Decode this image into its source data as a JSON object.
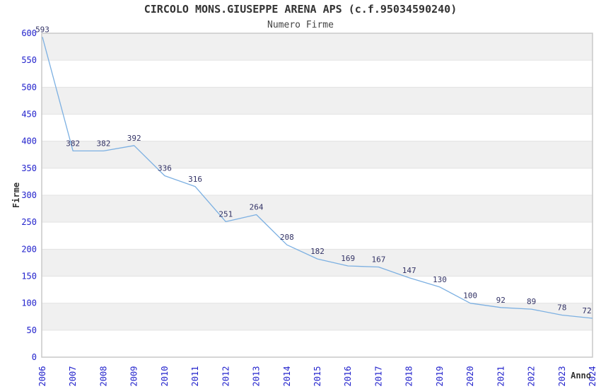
{
  "chart_data": {
    "type": "line",
    "title": "CIRCOLO MONS.GIUSEPPE ARENA APS (c.f.95034590240)",
    "subtitle": "Numero Firme",
    "xlabel": "Anno",
    "ylabel": "Firme",
    "categories": [
      "2006",
      "2007",
      "2008",
      "2009",
      "2010",
      "2011",
      "2012",
      "2013",
      "2014",
      "2015",
      "2016",
      "2017",
      "2018",
      "2019",
      "2020",
      "2021",
      "2022",
      "2023",
      "2024"
    ],
    "values": [
      593,
      382,
      382,
      392,
      336,
      316,
      251,
      264,
      208,
      182,
      169,
      167,
      147,
      130,
      100,
      92,
      89,
      78,
      72
    ],
    "ylim": [
      0,
      600
    ],
    "ytick_step": 50,
    "yticks": [
      0,
      50,
      100,
      150,
      200,
      250,
      300,
      350,
      400,
      450,
      500,
      550,
      600
    ],
    "legend": "none",
    "grid": "horizontal alternating bands every 50",
    "data_labels_shown": true,
    "colors": {
      "line": "#7cb0e2",
      "tick_label": "#2222cc",
      "data_label": "#333366",
      "band": "#f0f0f0",
      "gridline": "#e3e3e3",
      "plot_border": "#c9c9c9",
      "title": "#333333",
      "subtitle": "#444444",
      "axis_title": "#333333",
      "background": "#ffffff"
    }
  }
}
